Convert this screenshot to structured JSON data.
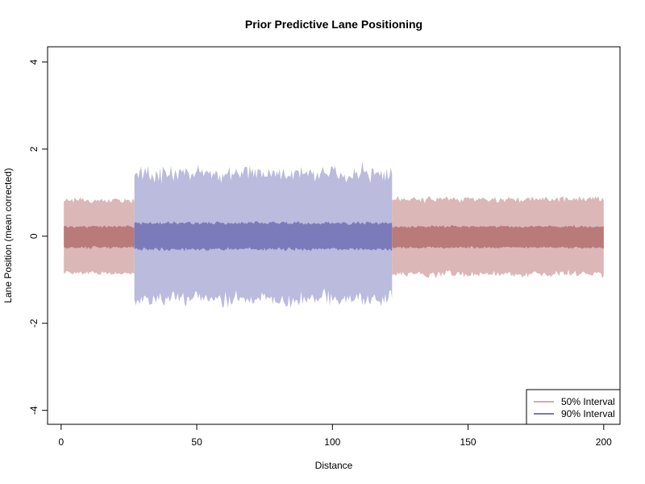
{
  "chart_data": {
    "type": "area",
    "title": "Prior Predictive Lane Positioning",
    "xlabel": "Distance",
    "ylabel": "Lane Position (mean corrected)",
    "xlim": [
      0,
      200
    ],
    "ylim": [
      -4,
      4
    ],
    "x_ticks": [
      0,
      50,
      100,
      150,
      200
    ],
    "y_ticks": [
      -4,
      -2,
      0,
      2,
      4
    ],
    "grid": false,
    "legend_position": "bottom-right",
    "legend": [
      {
        "label": "50% Interval",
        "color": "#d7a9a9"
      },
      {
        "label": "90% Interval",
        "color": "#7b7bbb"
      }
    ],
    "segments": [
      {
        "x_range": [
          1,
          27
        ],
        "color_outer": "#dbb7b8",
        "color_inner": "#b97a7a",
        "outer_upper_mean": 0.82,
        "outer_lower_mean": -0.85,
        "inner_upper_mean": 0.22,
        "inner_lower_mean": -0.26,
        "outer_noise": 0.06,
        "inner_noise": 0.03
      },
      {
        "x_range": [
          27,
          122
        ],
        "color_outer": "#babbdd",
        "color_inner": "#7b7bbb",
        "outer_upper_mean": 1.45,
        "outer_lower_mean": -1.45,
        "inner_upper_mean": 0.3,
        "inner_lower_mean": -0.3,
        "outer_noise": 0.2,
        "inner_noise": 0.04
      },
      {
        "x_range": [
          122,
          200
        ],
        "color_outer": "#dbb7b8",
        "color_inner": "#b97a7a",
        "outer_upper_mean": 0.85,
        "outer_lower_mean": -0.87,
        "inner_upper_mean": 0.22,
        "inner_lower_mean": -0.26,
        "outer_noise": 0.08,
        "inner_noise": 0.03
      }
    ]
  }
}
